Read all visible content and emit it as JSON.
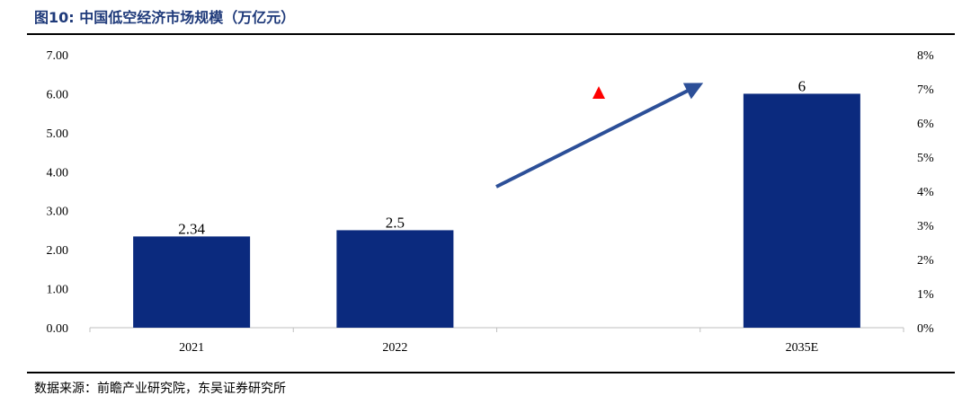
{
  "title": "图10:  中国低空经济市场规模（万亿元）",
  "source": "数据来源：前瞻产业研究院，东吴证券研究所",
  "chart_data": {
    "type": "bar",
    "categories": [
      "2021",
      "2022",
      "",
      "2035E"
    ],
    "values": [
      2.34,
      2.5,
      null,
      6
    ],
    "data_labels": [
      "2.34",
      "2.5",
      "",
      "6"
    ],
    "ylim": [
      0,
      7
    ],
    "y_ticks": [
      "0.00",
      "1.00",
      "2.00",
      "3.00",
      "4.00",
      "5.00",
      "6.00",
      "7.00"
    ],
    "y2lim": [
      0,
      8
    ],
    "y2_ticks": [
      "0%",
      "1%",
      "2%",
      "3%",
      "4%",
      "5%",
      "6%",
      "7%",
      "8%"
    ],
    "grid": false,
    "legend": "none",
    "bar_color": "#0b2a7e",
    "arrow_color": "#2c4f98",
    "marker": "red-triangle",
    "marker_color": "#ff0000"
  }
}
